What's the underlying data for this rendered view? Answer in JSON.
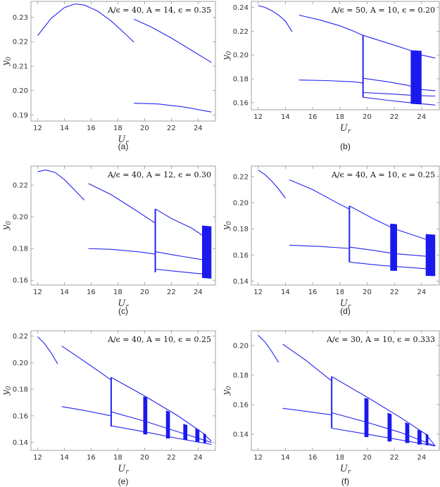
{
  "chart_data": [
    {
      "type": "line",
      "caption": "(a)",
      "annotation": "A/ϵ = 40, A = 14, ϵ = 0.35",
      "xlabel": "U",
      "xlabel_sub": "r",
      "ylabel": "y",
      "ylabel_sub": "0",
      "xlim": [
        11.5,
        25.3
      ],
      "ylim": [
        0.1875,
        0.2365
      ],
      "xticks": [
        12,
        14,
        16,
        18,
        20,
        22,
        24
      ],
      "yticks": [
        0.19,
        0.2,
        0.21,
        0.22,
        0.23
      ],
      "ytick_labels": [
        "0.19",
        "0.20",
        "0.21",
        "0.22",
        "0.23"
      ],
      "series": [
        {
          "name": "branch-1",
          "x": [
            12.0,
            13.0,
            14.0,
            14.8,
            15.5,
            16.5,
            17.5,
            18.5,
            19.2
          ],
          "y": [
            0.2225,
            0.2295,
            0.234,
            0.2355,
            0.235,
            0.2325,
            0.2285,
            0.2235,
            0.2198
          ]
        },
        {
          "name": "branch-2-upper",
          "x": [
            19.2,
            20.5,
            22.0,
            23.5,
            25.0
          ],
          "y": [
            0.2292,
            0.226,
            0.2215,
            0.2165,
            0.2115
          ]
        },
        {
          "name": "branch-2-lower",
          "x": [
            19.2,
            21.0,
            23.0,
            25.0
          ],
          "y": [
            0.1948,
            0.1945,
            0.1932,
            0.1912
          ]
        }
      ],
      "jumps": [],
      "bands": []
    },
    {
      "type": "line",
      "caption": "(b)",
      "annotation": "A/ϵ = 50, A = 10, ϵ = 0.20",
      "xlabel": "U",
      "xlabel_sub": "r",
      "ylabel": "y",
      "ylabel_sub": "0",
      "xlim": [
        11.5,
        25.3
      ],
      "ylim": [
        0.154,
        0.245
      ],
      "xticks": [
        12,
        14,
        16,
        18,
        20,
        22,
        24
      ],
      "yticks": [
        0.16,
        0.18,
        0.2,
        0.22,
        0.24
      ],
      "ytick_labels": [
        "0.16",
        "0.18",
        "0.20",
        "0.22",
        "0.24"
      ],
      "series": [
        {
          "name": "branch-1",
          "x": [
            12.0,
            12.5,
            13.0,
            13.5,
            14.0,
            14.5
          ],
          "y": [
            0.2415,
            0.24,
            0.2372,
            0.2335,
            0.2285,
            0.2195
          ]
        },
        {
          "name": "branch-2-upper",
          "x": [
            15.0,
            16.5,
            18.0,
            19.0,
            19.7
          ],
          "y": [
            0.2335,
            0.2295,
            0.2245,
            0.22,
            0.2165
          ]
        },
        {
          "name": "branch-2-lower",
          "x": [
            15.0,
            17.0,
            19.0,
            19.7
          ],
          "y": [
            0.179,
            0.1785,
            0.1775,
            0.1765
          ]
        },
        {
          "name": "branch-3-top",
          "x": [
            19.7,
            21.5,
            23.0,
            24.0,
            25.0
          ],
          "y": [
            0.2165,
            0.21,
            0.2045,
            0.2,
            0.1975
          ]
        },
        {
          "name": "branch-3-mid",
          "x": [
            19.7,
            21.5,
            23.0,
            24.0,
            25.0
          ],
          "y": [
            0.1805,
            0.1775,
            0.1745,
            0.171,
            0.17
          ]
        },
        {
          "name": "branch-3-mid2",
          "x": [
            19.7,
            21.5,
            23.5,
            25.0
          ],
          "y": [
            0.1685,
            0.1675,
            0.166,
            0.1655
          ]
        },
        {
          "name": "branch-3-bottom",
          "x": [
            19.7,
            21.5,
            23.5,
            25.0
          ],
          "y": [
            0.1645,
            0.162,
            0.1595,
            0.158
          ]
        }
      ],
      "jumps": [
        {
          "x": 19.7,
          "y": [
            0.1645,
            0.2165
          ]
        }
      ],
      "bands": [
        {
          "x": [
            23.2,
            24.0
          ],
          "y_top": [
            0.204,
            0.2035
          ],
          "y_bottom": [
            0.159,
            0.1585
          ]
        }
      ]
    },
    {
      "type": "line",
      "caption": "(c)",
      "annotation": "A/ϵ = 40, A = 12, ϵ = 0.30",
      "xlabel": "U",
      "xlabel_sub": "r",
      "ylabel": "y",
      "ylabel_sub": "0",
      "xlim": [
        11.5,
        25.3
      ],
      "ylim": [
        0.157,
        0.232
      ],
      "xticks": [
        12,
        14,
        16,
        18,
        20,
        22,
        24
      ],
      "yticks": [
        0.16,
        0.18,
        0.2,
        0.22
      ],
      "ytick_labels": [
        "0.16",
        "0.18",
        "0.20",
        "0.22"
      ],
      "series": [
        {
          "name": "branch-1",
          "x": [
            12.0,
            12.6,
            13.3,
            14.0,
            14.8,
            15.5
          ],
          "y": [
            0.2285,
            0.2295,
            0.228,
            0.2235,
            0.2165,
            0.2105
          ]
        },
        {
          "name": "branch-2-upper",
          "x": [
            15.8,
            17.5,
            19.0,
            20.8
          ],
          "y": [
            0.221,
            0.214,
            0.206,
            0.196
          ]
        },
        {
          "name": "branch-2-lower",
          "x": [
            15.8,
            17.5,
            19.5,
            20.8
          ],
          "y": [
            0.18,
            0.1795,
            0.178,
            0.1765
          ]
        },
        {
          "name": "branch-3-top",
          "x": [
            20.8,
            22.0,
            23.5,
            24.3,
            25.0
          ],
          "y": [
            0.205,
            0.199,
            0.193,
            0.1885,
            0.186
          ]
        },
        {
          "name": "branch-3-mid",
          "x": [
            20.8,
            22.5,
            24.3
          ],
          "y": [
            0.178,
            0.1755,
            0.173
          ]
        },
        {
          "name": "branch-3-bottom",
          "x": [
            20.8,
            22.5,
            24.3,
            25.0
          ],
          "y": [
            0.167,
            0.1655,
            0.164,
            0.1635
          ]
        }
      ],
      "jumps": [
        {
          "x": 20.8,
          "y": [
            0.165,
            0.205
          ]
        }
      ],
      "bands": [
        {
          "x": [
            24.3,
            25.0
          ],
          "y_top": [
            0.1945,
            0.194
          ],
          "y_bottom": [
            0.1615,
            0.161
          ]
        }
      ]
    },
    {
      "type": "line",
      "caption": "(d)",
      "annotation": "A/ϵ = 40, A = 10, ϵ = 0.25",
      "xlabel": "U",
      "xlabel_sub": "r",
      "ylabel": "y",
      "ylabel_sub": "0",
      "xlim": [
        11.5,
        25.3
      ],
      "ylim": [
        0.137,
        0.228
      ],
      "xticks": [
        12,
        14,
        16,
        18,
        20,
        22,
        24
      ],
      "yticks": [
        0.14,
        0.16,
        0.18,
        0.2,
        0.22
      ],
      "ytick_labels": [
        "0.14",
        "0.16",
        "0.18",
        "0.20",
        "0.22"
      ],
      "series": [
        {
          "name": "branch-1",
          "x": [
            12.0,
            12.5,
            13.0,
            13.5,
            14.0
          ],
          "y": [
            0.225,
            0.2215,
            0.2165,
            0.2105,
            0.2035
          ]
        },
        {
          "name": "branch-2-upper",
          "x": [
            14.3,
            16.0,
            17.5,
            18.7
          ],
          "y": [
            0.2175,
            0.21,
            0.2015,
            0.195
          ]
        },
        {
          "name": "branch-2-lower",
          "x": [
            14.3,
            16.5,
            18.7
          ],
          "y": [
            0.1675,
            0.1665,
            0.165
          ]
        },
        {
          "name": "branch-3-top",
          "x": [
            18.7,
            20.5,
            22.0,
            24.3,
            25.0
          ],
          "y": [
            0.1975,
            0.1875,
            0.18,
            0.172,
            0.17
          ]
        },
        {
          "name": "branch-3-mid",
          "x": [
            18.7,
            20.5,
            22.0,
            24.3
          ],
          "y": [
            0.166,
            0.1635,
            0.161,
            0.159
          ]
        },
        {
          "name": "branch-3-bottom",
          "x": [
            18.7,
            21.0,
            24.3,
            25.0
          ],
          "y": [
            0.1545,
            0.152,
            0.1495,
            0.149
          ]
        }
      ],
      "jumps": [
        {
          "x": 18.7,
          "y": [
            0.1545,
            0.1975
          ]
        }
      ],
      "bands": [
        {
          "x": [
            21.7,
            22.2
          ],
          "y_top": [
            0.184,
            0.1835
          ],
          "y_bottom": [
            0.148,
            0.1478
          ]
        },
        {
          "x": [
            24.3,
            25.0
          ],
          "y_top": [
            0.176,
            0.1755
          ],
          "y_bottom": [
            0.144,
            0.1438
          ]
        }
      ]
    },
    {
      "type": "line",
      "caption": "(e)",
      "annotation": "A/ϵ = 40, A = 10, ϵ = 0.25",
      "xlabel": "U",
      "xlabel_sub": "r",
      "ylabel": "y",
      "ylabel_sub": "0",
      "xlim": [
        11.5,
        25.3
      ],
      "ylim": [
        0.134,
        0.224
      ],
      "xticks": [
        12,
        14,
        16,
        18,
        20,
        22,
        24
      ],
      "yticks": [
        0.14,
        0.16,
        0.18,
        0.2,
        0.22
      ],
      "ytick_labels": [
        "0.14",
        "0.16",
        "0.18",
        "0.20",
        "0.22"
      ],
      "series": [
        {
          "name": "branch-1",
          "x": [
            12.0,
            12.5,
            13.0,
            13.5
          ],
          "y": [
            0.2195,
            0.2145,
            0.2075,
            0.199
          ]
        },
        {
          "name": "branch-2-upper",
          "x": [
            13.8,
            15.5,
            17.5
          ],
          "y": [
            0.2125,
            0.201,
            0.187
          ]
        },
        {
          "name": "branch-2-lower",
          "x": [
            13.8,
            15.5,
            17.5
          ],
          "y": [
            0.167,
            0.164,
            0.16
          ]
        },
        {
          "name": "branch-3-top",
          "x": [
            17.5,
            20.0,
            22.5,
            24.3,
            25.0
          ],
          "y": [
            0.189,
            0.175,
            0.16,
            0.1475,
            0.141
          ]
        },
        {
          "name": "branch-3-mid",
          "x": [
            17.5,
            20.0,
            22.5,
            25.0
          ],
          "y": [
            0.163,
            0.156,
            0.148,
            0.14
          ]
        },
        {
          "name": "branch-3-bottom",
          "x": [
            17.5,
            20.0,
            22.5,
            25.0
          ],
          "y": [
            0.1525,
            0.148,
            0.143,
            0.1385
          ]
        }
      ],
      "jumps": [
        {
          "x": 17.5,
          "y": [
            0.152,
            0.189
          ]
        }
      ],
      "bands": [
        {
          "x": [
            19.9,
            20.2
          ],
          "y_top": [
            0.1745,
            0.174
          ],
          "y_bottom": [
            0.146,
            0.146
          ]
        },
        {
          "x": [
            21.6,
            21.9
          ],
          "y_top": [
            0.164,
            0.163
          ],
          "y_bottom": [
            0.143,
            0.143
          ]
        },
        {
          "x": [
            22.9,
            23.2
          ],
          "y_top": [
            0.154,
            0.153
          ],
          "y_bottom": [
            0.142,
            0.1415
          ]
        },
        {
          "x": [
            23.8,
            24.1
          ],
          "y_top": [
            0.151,
            0.1495
          ],
          "y_bottom": [
            0.1405,
            0.14
          ]
        },
        {
          "x": [
            24.4,
            24.6
          ],
          "y_top": [
            0.147,
            0.146
          ],
          "y_bottom": [
            0.1395,
            0.1395
          ]
        }
      ]
    },
    {
      "type": "line",
      "caption": "(f)",
      "annotation": "A/ϵ = 30, A = 10, ϵ = 0.333",
      "xlabel": "U",
      "xlabel_sub": "r",
      "ylabel": "y",
      "ylabel_sub": "0",
      "xlim": [
        11.5,
        25.3
      ],
      "ylim": [
        0.129,
        0.21
      ],
      "xticks": [
        12,
        14,
        16,
        18,
        20,
        22,
        24
      ],
      "yticks": [
        0.14,
        0.16,
        0.18,
        0.2
      ],
      "ytick_labels": [
        "0.14",
        "0.16",
        "0.18",
        "0.20"
      ],
      "series": [
        {
          "name": "branch-1",
          "x": [
            12.0,
            12.5,
            13.0,
            13.5
          ],
          "y": [
            0.207,
            0.2025,
            0.196,
            0.1885
          ]
        },
        {
          "name": "branch-2-upper",
          "x": [
            13.8,
            15.5,
            17.4
          ],
          "y": [
            0.201,
            0.19,
            0.176
          ]
        },
        {
          "name": "branch-2-lower",
          "x": [
            13.8,
            15.5,
            17.4
          ],
          "y": [
            0.1575,
            0.1555,
            0.153
          ]
        },
        {
          "name": "branch-3-top",
          "x": [
            17.4,
            20.0,
            22.5,
            24.3,
            25.0
          ],
          "y": [
            0.179,
            0.165,
            0.151,
            0.14,
            0.132
          ]
        },
        {
          "name": "branch-3-mid",
          "x": [
            17.4,
            20.0,
            22.5,
            25.0
          ],
          "y": [
            0.1545,
            0.148,
            0.141,
            0.132
          ]
        },
        {
          "name": "branch-3-bottom",
          "x": [
            17.4,
            20.0,
            22.5,
            25.0
          ],
          "y": [
            0.144,
            0.14,
            0.136,
            0.132
          ]
        }
      ],
      "jumps": [
        {
          "x": 17.4,
          "y": [
            0.144,
            0.179
          ]
        }
      ],
      "bands": [
        {
          "x": [
            19.8,
            20.1
          ],
          "y_top": [
            0.1645,
            0.164
          ],
          "y_bottom": [
            0.138,
            0.138
          ]
        },
        {
          "x": [
            21.5,
            21.8
          ],
          "y_top": [
            0.1545,
            0.1535
          ],
          "y_bottom": [
            0.135,
            0.135
          ]
        },
        {
          "x": [
            22.8,
            23.1
          ],
          "y_top": [
            0.148,
            0.147
          ],
          "y_bottom": [
            0.134,
            0.134
          ]
        },
        {
          "x": [
            23.7,
            24.0
          ],
          "y_top": [
            0.143,
            0.142
          ],
          "y_bottom": [
            0.133,
            0.133
          ]
        },
        {
          "x": [
            24.3,
            24.5
          ],
          "y_top": [
            0.1405,
            0.1395
          ],
          "y_bottom": [
            0.1325,
            0.1325
          ]
        }
      ]
    }
  ]
}
